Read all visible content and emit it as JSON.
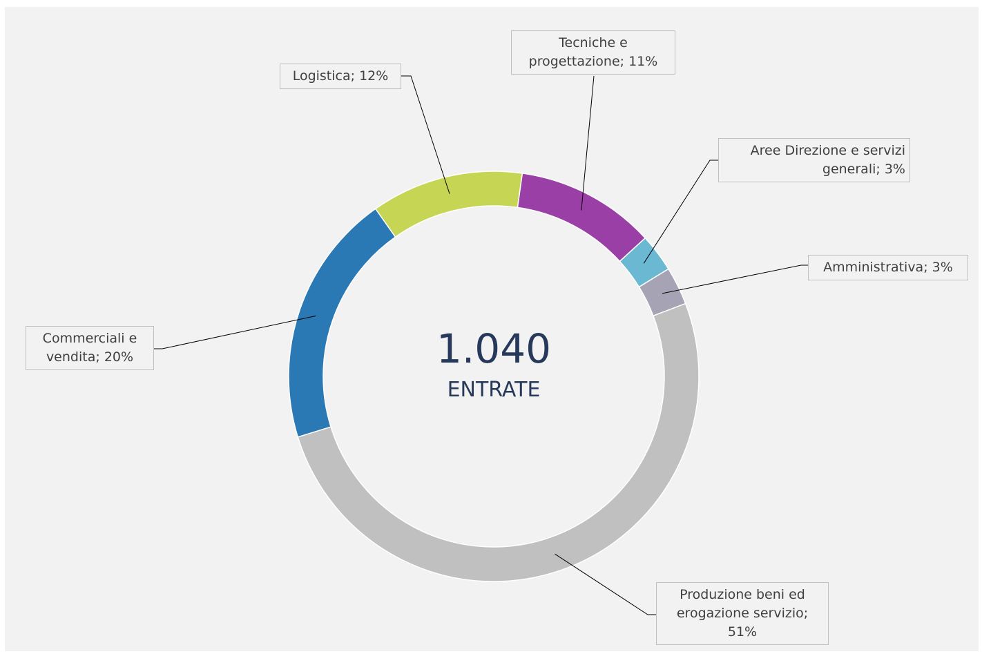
{
  "chart_data": {
    "type": "donut",
    "categories": [
      "Tecniche e progettazione",
      "Aree Direzione e servizi generali",
      "Amministrativa",
      "Produzione beni ed erogazione servizio",
      "Commerciali e vendita",
      "Logistica"
    ],
    "values": [
      11,
      3,
      3,
      51,
      20,
      12
    ],
    "value_labels": [
      "11%",
      "3%",
      "3%",
      "51%",
      "20%",
      "12%"
    ],
    "label_separator": ";",
    "colors": [
      "#9a3fa6",
      "#6ab8d2",
      "#a6a4b4",
      "#c0c0c0",
      "#2a78b4",
      "#c6d654"
    ],
    "total": {
      "value": 1040,
      "label": "1.040"
    },
    "total_caption": "ENTRATE"
  }
}
